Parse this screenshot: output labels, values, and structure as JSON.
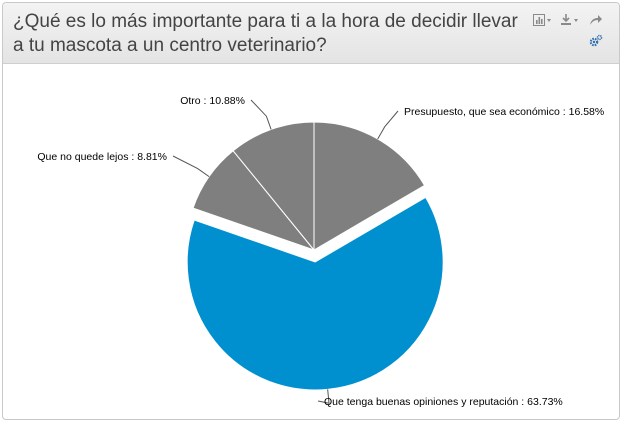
{
  "header": {
    "title_line1": "¿Qué es lo más importante para ti a la hora de decidir llevar",
    "title_line2": "a tu mascota a un centro veterinario?",
    "icons": [
      "bar-chart-icon",
      "download-icon",
      "share-icon",
      "settings-icon"
    ]
  },
  "colors": {
    "slice_gray": "#7f7f7f",
    "slice_blue": "#0090d0",
    "label_text": "#000000",
    "leader_line": "#555555"
  },
  "chart_data": {
    "type": "pie",
    "start_angle_deg": 0,
    "slices": [
      {
        "name": "Presupuesto, que sea económico",
        "value": 16.58,
        "label": "Presupuesto, que sea económico : 16.58%",
        "color": "#7f7f7f",
        "exploded": false
      },
      {
        "name": "Que tenga buenas opiniones y reputación",
        "value": 63.73,
        "label": "Que tenga buenas opiniones y reputación : 63.73%",
        "color": "#0090d0",
        "exploded": true
      },
      {
        "name": "Que no quede lejos",
        "value": 8.81,
        "label": "Que no quede lejos : 8.81%",
        "color": "#7f7f7f",
        "exploded": false
      },
      {
        "name": "Otro",
        "value": 10.88,
        "label": "Otro : 10.88%",
        "color": "#7f7f7f",
        "exploded": false
      }
    ]
  }
}
